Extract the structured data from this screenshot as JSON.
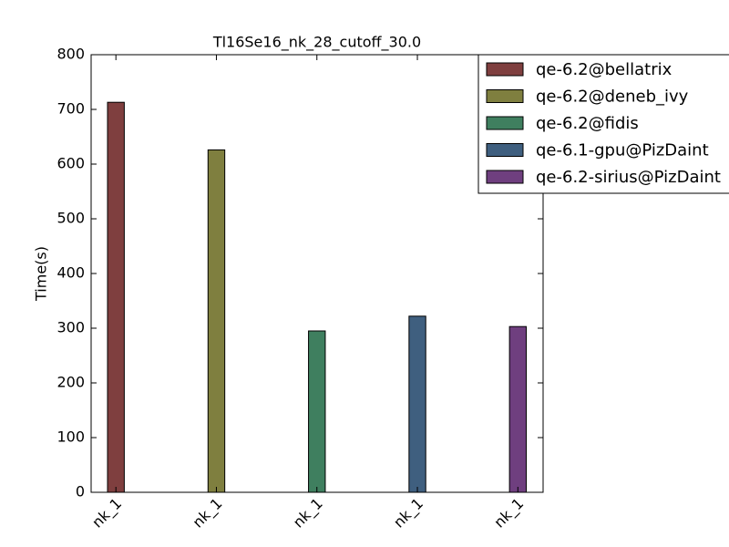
{
  "chart_data": {
    "type": "bar",
    "title": "Tl16Se16_nk_28_cutoff_30.0",
    "y_label": "Time(s)",
    "categories": [
      "nk_1",
      "nk_1",
      "nk_1",
      "nk_1",
      "nk_1"
    ],
    "series": [
      {
        "name": "qe-6.2@bellatrix",
        "color": "#7f3f3f",
        "values": [
          713,
          null,
          null,
          null,
          null
        ]
      },
      {
        "name": "qe-6.2@deneb_ivy",
        "color": "#7f7f3f",
        "values": [
          null,
          626,
          null,
          null,
          null
        ]
      },
      {
        "name": "qe-6.2@fidis",
        "color": "#3f7f5f",
        "values": [
          null,
          null,
          295,
          null,
          null
        ]
      },
      {
        "name": "qe-6.1-gpu@PizDaint",
        "color": "#3f5f7f",
        "values": [
          null,
          null,
          null,
          322,
          null
        ]
      },
      {
        "name": "qe-6.2-sirius@PizDaint",
        "color": "#6f3f7f",
        "values": [
          null,
          null,
          null,
          null,
          303
        ]
      }
    ],
    "ylim": [
      0,
      800
    ],
    "yticks": [
      0,
      100,
      200,
      300,
      400,
      500,
      600,
      700,
      800
    ],
    "legend": "upper right"
  }
}
